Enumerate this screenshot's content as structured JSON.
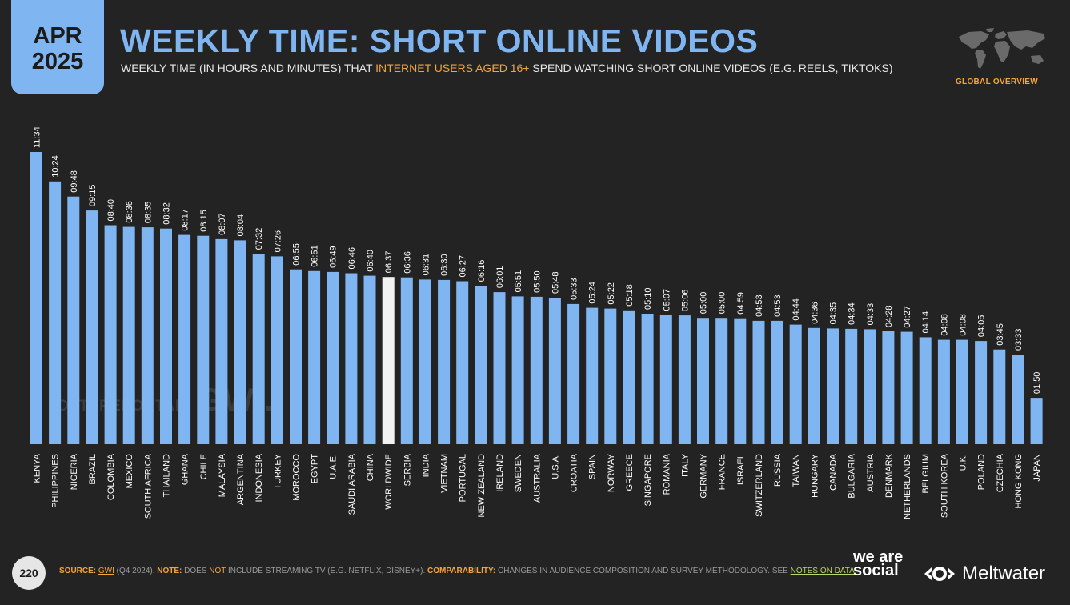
{
  "header": {
    "date_month": "APR",
    "date_year": "2025",
    "title": "WEEKLY TIME: SHORT ONLINE VIDEOS",
    "subtitle_pre": "WEEKLY TIME (IN HOURS AND MINUTES) THAT ",
    "subtitle_highlight": "INTERNET USERS AGED 16+",
    "subtitle_post": " SPEND WATCHING SHORT ONLINE VIDEOS (E.G. REELS, TIKTOKS)",
    "region_label": "GLOBAL OVERVIEW",
    "map_icon": "world-map-icon"
  },
  "watermark": {
    "brand1": "DATAREPORTAL",
    "brand2": "GWI."
  },
  "footer": {
    "page_number": "220",
    "source_label": "SOURCE:",
    "source_name": "GWI",
    "source_period": " (Q4 2024). ",
    "note_label": "NOTE:",
    "note_pre": " DOES ",
    "note_not": "NOT",
    "note_post": " INCLUDE STREAMING TV (E.G. NETFLIX, DISNEY+). ",
    "comparability_label": "COMPARABILITY:",
    "comparability_text": " CHANGES IN AUDIENCE COMPOSITION AND SURVEY METHODOLOGY. SEE ",
    "notes_link": "NOTES ON DATA",
    "notes_end": ".",
    "logo1": "we are social",
    "logo2": "Meltwater"
  },
  "colors": {
    "bar": "#7fb5f1",
    "highlight_bar": "#f2f2f2",
    "accent": "#f3a43b",
    "background": "#232323"
  },
  "chart_data": {
    "type": "bar",
    "unit": "hours:minutes per week",
    "highlight": "WORLDWIDE",
    "categories": [
      "KENYA",
      "PHILIPPINES",
      "NIGERIA",
      "BRAZIL",
      "COLOMBIA",
      "MEXICO",
      "SOUTH AFRICA",
      "THAILAND",
      "GHANA",
      "CHILE",
      "MALAYSIA",
      "ARGENTINA",
      "INDONESIA",
      "TURKEY",
      "MOROCCO",
      "EGYPT",
      "U.A.E.",
      "SAUDI ARABIA",
      "CHINA",
      "WORLDWIDE",
      "SERBIA",
      "INDIA",
      "VIETNAM",
      "PORTUGAL",
      "NEW ZEALAND",
      "IRELAND",
      "SWEDEN",
      "AUSTRALIA",
      "U.S.A.",
      "CROATIA",
      "SPAIN",
      "NORWAY",
      "GREECE",
      "SINGAPORE",
      "ROMANIA",
      "ITALY",
      "GERMANY",
      "FRANCE",
      "ISRAEL",
      "SWITZERLAND",
      "RUSSIA",
      "TAIWAN",
      "HUNGARY",
      "CANADA",
      "BULGARIA",
      "AUSTRIA",
      "DENMARK",
      "NETHERLANDS",
      "BELGIUM",
      "SOUTH KOREA",
      "U.K.",
      "POLAND",
      "CZECHIA",
      "HONG KONG",
      "JAPAN"
    ],
    "values": [
      "11:34",
      "10:24",
      "09:48",
      "09:15",
      "08:40",
      "08:36",
      "08:35",
      "08:32",
      "08:17",
      "08:15",
      "08:07",
      "08:04",
      "07:32",
      "07:26",
      "06:55",
      "06:51",
      "06:49",
      "06:46",
      "06:40",
      "06:37",
      "06:36",
      "06:31",
      "06:30",
      "06:27",
      "06:16",
      "06:01",
      "05:51",
      "05:50",
      "05:48",
      "05:33",
      "05:24",
      "05:22",
      "05:18",
      "05:10",
      "05:07",
      "05:06",
      "05:00",
      "05:00",
      "04:59",
      "04:53",
      "04:53",
      "04:44",
      "04:36",
      "04:35",
      "04:34",
      "04:33",
      "04:28",
      "04:27",
      "04:14",
      "04:08",
      "04:08",
      "04:05",
      "03:45",
      "03:33",
      "01:50"
    ]
  }
}
